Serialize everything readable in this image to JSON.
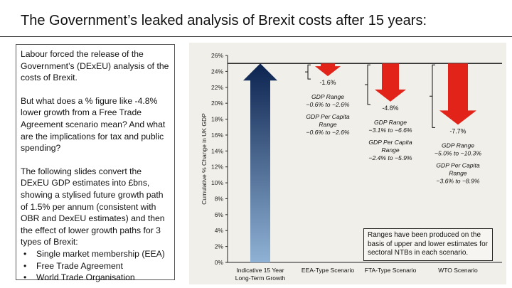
{
  "title": "The Government’s leaked analysis of Brexit costs after 15 years:",
  "textbox": {
    "p1": "Labour forced the release of the Government’s (DExEU) analysis of the costs of Brexit.",
    "p2": "But what does a % figure like -4.8% lower growth from a Free Trade Agreement scenario mean?  And what are the implications for tax and public spending?",
    "p3": "The following slides convert the DExEU GDP estimates into £bns, showing a stylised future growth path of 1.5% per annum (consistent with OBR and DexEU estimates) and then the effect of lower growth paths for 3 types of Brexit:",
    "bullets": [
      "Single market membership (EEA)",
      "Free Trade Agreement",
      "World Trade Organisation"
    ]
  },
  "chart_data": {
    "type": "bar",
    "ylabel": "Cumulative % Change in UK GDP",
    "ylim": [
      0,
      26
    ],
    "yticks": [
      "0%",
      "2%",
      "4%",
      "6%",
      "8%",
      "10%",
      "12%",
      "14%",
      "16%",
      "18%",
      "20%",
      "22%",
      "24%",
      "26%"
    ],
    "categories": [
      "Indicative 15 Year Long-Term Growth",
      "EEA-Type Scenario",
      "FTA-Type Scenario",
      "WTO Scenario"
    ],
    "category_lines": [
      [
        "Indicative 15 Year",
        "Long-Term Growth"
      ],
      [
        "EEA-Type Scenario"
      ],
      [
        "FTA-Type Scenario"
      ],
      [
        "WTO Scenario"
      ]
    ],
    "baseline_growth": 25,
    "scenarios": [
      {
        "impact": "-1.6%",
        "drop": 1.6,
        "gdp_range_title": "GDP Range",
        "gdp_range": "−0.6% to −2.6%",
        "per_capita_title": [
          "GDP Per Capita",
          "Range"
        ],
        "per_capita_range": "−0.6% to −2.6%"
      },
      {
        "impact": "-4.8%",
        "drop": 4.8,
        "gdp_range_title": "GDP Range",
        "gdp_range": "−3.1% to −6.6%",
        "per_capita_title": [
          "GDP Per Capita",
          "Range"
        ],
        "per_capita_range": "−2.4% to −5.9%"
      },
      {
        "impact": "-7.7%",
        "drop": 7.7,
        "gdp_range_title": "GDP Range",
        "gdp_range": "−5.0% to −10.3%",
        "per_capita_title": [
          "GDP Per Capita",
          "Range"
        ],
        "per_capita_range": "−3.6% to −8.9%"
      }
    ],
    "note": "Ranges have been produced on the basis of upper and lower estimates for sectoral NTBs in each scenario.",
    "colors": {
      "growth_arrow_top": "#0c2350",
      "growth_arrow_bottom": "#8fb2d4",
      "impact_arrow": "#e2231a"
    }
  }
}
